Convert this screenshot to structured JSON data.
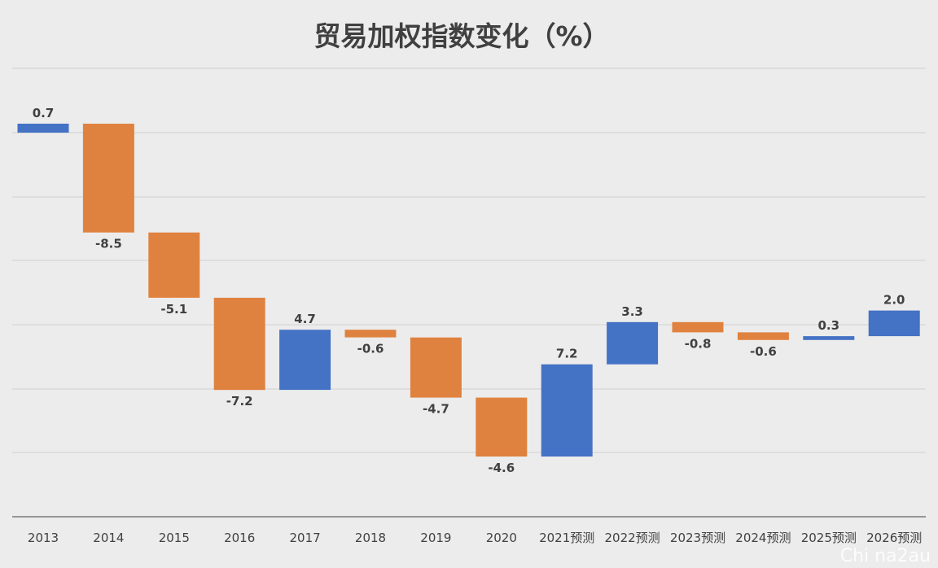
{
  "chart_data": {
    "type": "bar",
    "subtype": "waterfall",
    "title": "贸易加权指数变化（%）",
    "xlabel": "",
    "ylabel": "",
    "categories": [
      "2013",
      "2014",
      "2015",
      "2016",
      "2017",
      "2018",
      "2019",
      "2020",
      "2021预测",
      "2022预测",
      "2023预测",
      "2024预测",
      "2025预测",
      "2026预测"
    ],
    "values": [
      0.7,
      -8.5,
      -5.1,
      -7.2,
      4.7,
      -0.6,
      -4.7,
      -4.6,
      7.2,
      3.3,
      -0.8,
      -0.6,
      0.3,
      2.0
    ],
    "data_labels": [
      "0.7",
      "-8.5",
      "-5.1",
      "-7.2",
      "4.7",
      "-0.6",
      "-4.7",
      "-4.6",
      "7.2",
      "3.3",
      "-0.8",
      "-0.6",
      "0.3",
      "2.0"
    ],
    "legend": "none",
    "grid": true,
    "colors": {
      "increase": "#4472c4",
      "decrease": "#e0823f",
      "grid": "#cfcfcf",
      "axis": "#7a7a7a",
      "text": "#404040"
    }
  },
  "watermark": "Chi na2au"
}
